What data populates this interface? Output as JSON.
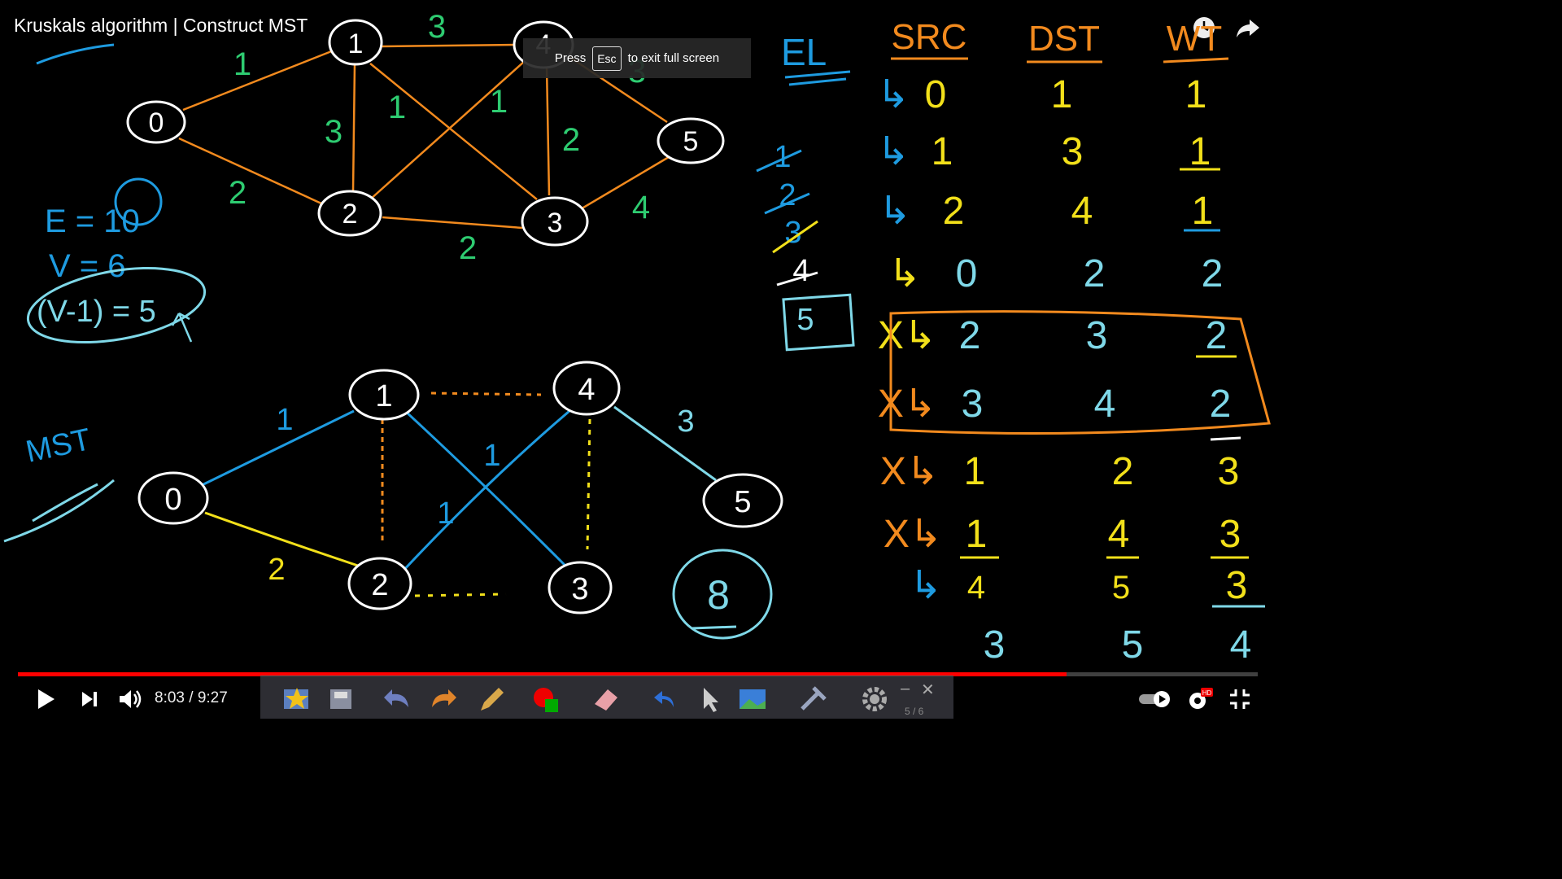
{
  "header": {
    "video_title": "Kruskals algorithm | Construct MST",
    "icons": [
      "watch-later-icon",
      "share-icon"
    ]
  },
  "fullscreen_toast": {
    "press": "Press",
    "key": "Esc",
    "message": "to exit full screen"
  },
  "board": {
    "graph_top": {
      "nodes": [
        {
          "id": "0",
          "label": "0"
        },
        {
          "id": "1",
          "label": "1"
        },
        {
          "id": "4",
          "label": "4"
        },
        {
          "id": "5",
          "label": "5"
        },
        {
          "id": "2",
          "label": "2"
        },
        {
          "id": "3",
          "label": "3"
        }
      ],
      "edge_weights": [
        "1",
        "3",
        "3",
        "1",
        "1",
        "2",
        "3",
        "2",
        "2",
        "4"
      ]
    },
    "notes_left": {
      "e": "E = 10",
      "v": "V = 6",
      "v1": "(V-1) = 5"
    },
    "mst_label": "MST",
    "graph_mst": {
      "nodes": [
        "1",
        "4",
        "0",
        "5",
        "2",
        "3"
      ],
      "edge_weights": [
        "1",
        "1",
        "1",
        "3",
        "2"
      ],
      "total": "8"
    },
    "counter_label": "EL",
    "counter": [
      "1",
      "2",
      "3",
      "4",
      "5"
    ],
    "edge_list": {
      "headers": [
        "SRC",
        "DST",
        "WT"
      ],
      "rows": [
        {
          "mark": "↳",
          "src": "0",
          "dst": "1",
          "wt": "1"
        },
        {
          "mark": "↳",
          "src": "1",
          "dst": "3",
          "wt": "1"
        },
        {
          "mark": "↳",
          "src": "2",
          "dst": "4",
          "wt": "1"
        },
        {
          "mark": "↳",
          "src": "0",
          "dst": "2",
          "wt": "2"
        },
        {
          "mark": "X↳",
          "src": "2",
          "dst": "3",
          "wt": "2"
        },
        {
          "mark": "X↳",
          "src": "3",
          "dst": "4",
          "wt": "2"
        },
        {
          "mark": "X↳",
          "src": "1",
          "dst": "2",
          "wt": "3"
        },
        {
          "mark": "X↳",
          "src": "1",
          "dst": "4",
          "wt": "3"
        },
        {
          "mark": "↳",
          "src": "4",
          "dst": "5",
          "wt": "3"
        },
        {
          "mark": "",
          "src": "3",
          "dst": "5",
          "wt": "4"
        }
      ]
    }
  },
  "player": {
    "time": "8:03 / 9:27",
    "progress_fraction": 0.846,
    "page_indicator": "5 / 6",
    "colors": {
      "played": "#ff0000",
      "orange": "#f28a1e",
      "green": "#2ecc71",
      "blue": "#1e9be0",
      "yellow": "#f2e01a",
      "cyan": "#7fd8e8"
    }
  }
}
